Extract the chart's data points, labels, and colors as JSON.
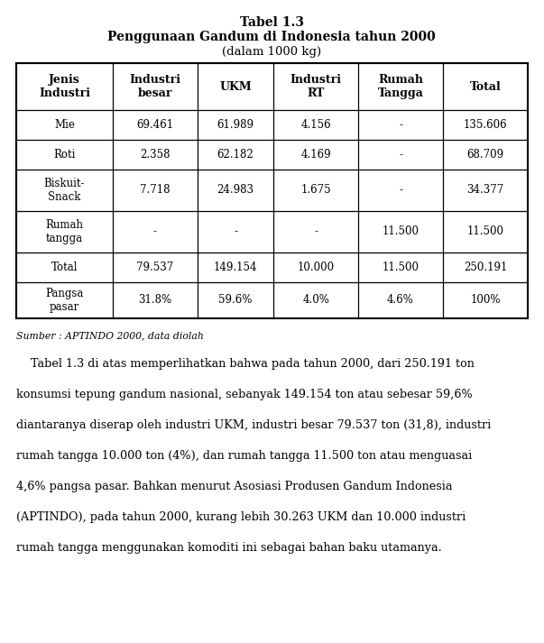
{
  "title1": "Tabel 1.3",
  "title2": "Penggunaan Gandum di Indonesia tahun 2000",
  "title3": "(dalam 1000 kg)",
  "headers": [
    "Jenis\nIndustri",
    "Industri\nbesar",
    "UKM",
    "Industri\nRT",
    "Rumah\nTangga",
    "Total"
  ],
  "rows": [
    [
      "Mie",
      "69.461",
      "61.989",
      "4.156",
      "-",
      "135.606"
    ],
    [
      "Roti",
      "2.358",
      "62.182",
      "4.169",
      "-",
      "68.709"
    ],
    [
      "Biskuit-\nSnack",
      "7.718",
      "24.983",
      "1.675",
      "-",
      "34.377"
    ],
    [
      "Rumah\ntangga",
      "-",
      "-",
      "-",
      "11.500",
      "11.500"
    ],
    [
      "Total",
      "79.537",
      "149.154",
      "10.000",
      "11.500",
      "250.191"
    ],
    [
      "Pangsa\npasar",
      "31.8%",
      "59.6%",
      "4.0%",
      "4.6%",
      "100%"
    ]
  ],
  "source": "Sumber : APTINDO 2000, data diolah",
  "para_lines": [
    "    Tabel 1.3 di atas memperlihatkan bahwa pada tahun 2000, dari 250.191 ton",
    "konsumsi tepung gandum nasional, sebanyak 149.154 ton atau sebesar 59,6%",
    "diantaranya diserap oleh industri UKM, industri besar 79.537 ton (31,8), industri",
    "rumah tangga 10.000 ton (4%), dan rumah tangga 11.500 ton atau menguasai",
    "4,6% pangsa pasar. Bahkan menurut Asosiasi Produsen Gandum Indonesia",
    "(APTINDO), pada tahun 2000, kurang lebih 30.263 UKM dan 10.000 industri",
    "rumah tangga menggunakan komoditi ini sebagai bahan baku utamanya."
  ],
  "background_color": "#ffffff",
  "text_color": "#000000",
  "font_size_title1": 10,
  "font_size_title2": 10,
  "font_size_title3": 9.5,
  "font_size_header": 9,
  "font_size_data": 8.5,
  "font_size_source": 7.8,
  "font_size_para": 9.2
}
